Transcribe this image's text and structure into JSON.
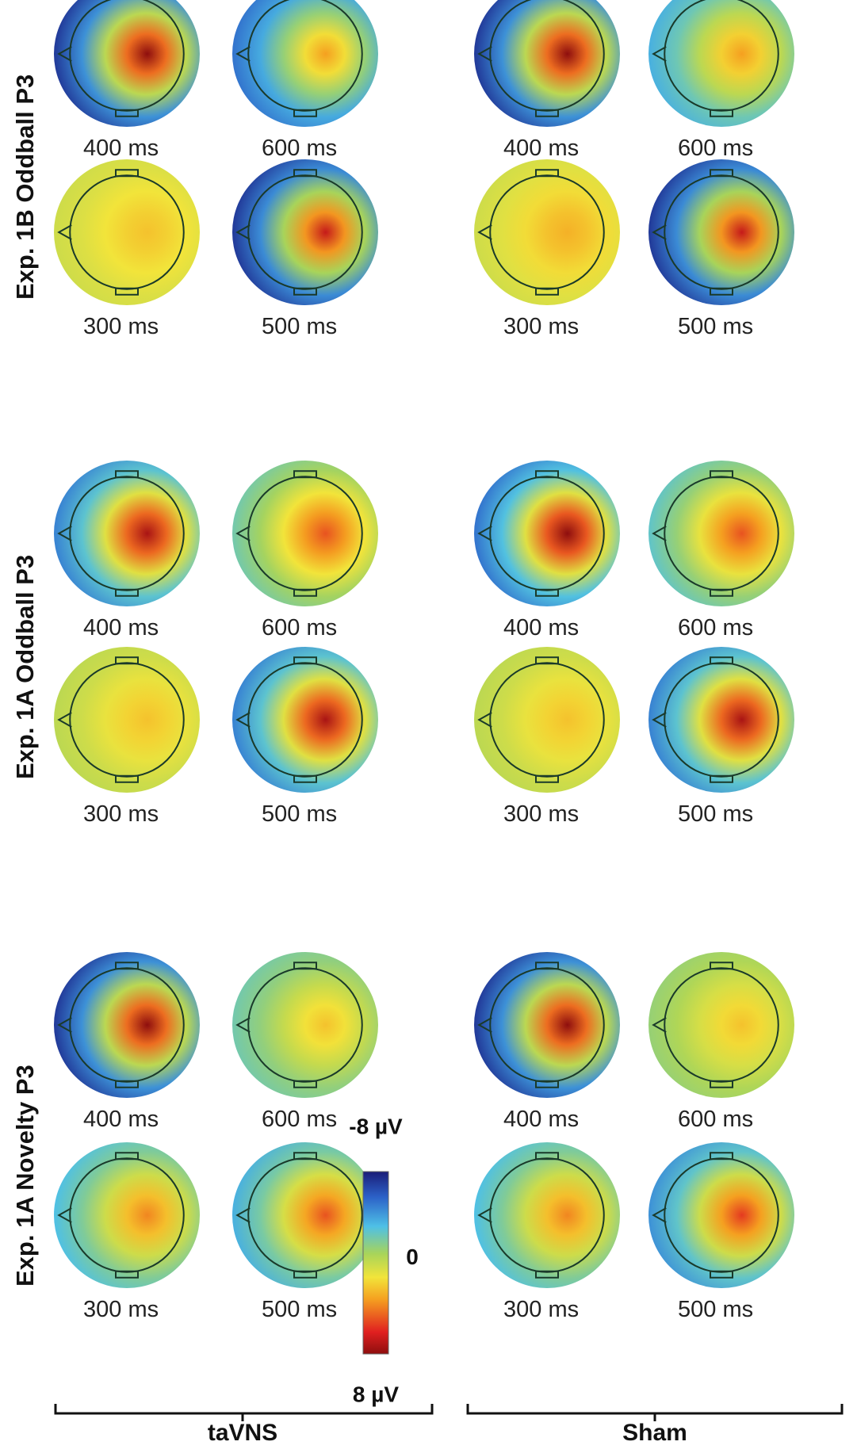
{
  "sections": [
    {
      "title": "Exp. 1A Novelty P3"
    },
    {
      "title": "Exp. 1A Oddball P3"
    },
    {
      "title": "Exp. 1B Oddball P3"
    }
  ],
  "time_labels": [
    "300 ms",
    "400 ms",
    "500 ms",
    "600 ms"
  ],
  "conditions": [
    {
      "label": "taVNS"
    },
    {
      "label": "Sham"
    }
  ],
  "colorbar": {
    "max_label": "8 µV",
    "zero_label": "0",
    "min_label": "-8 µV"
  },
  "colors": {
    "positive": "#c81a1a",
    "zero": "#9ccc5a",
    "negative": "#2a3c9c"
  },
  "maps": [
    {
      "condition": "taVNS",
      "section": 0,
      "time": "300 ms",
      "peak_uV": 4.5,
      "frontal_uV": -2.5
    },
    {
      "condition": "taVNS",
      "section": 0,
      "time": "400 ms",
      "peak_uV": 8.0,
      "frontal_uV": -7.0
    },
    {
      "condition": "taVNS",
      "section": 0,
      "time": "500 ms",
      "peak_uV": 5.5,
      "frontal_uV": -3.0
    },
    {
      "condition": "taVNS",
      "section": 0,
      "time": "600 ms",
      "peak_uV": 3.0,
      "frontal_uV": -1.5
    },
    {
      "condition": "taVNS",
      "section": 1,
      "time": "300 ms",
      "peak_uV": 3.0,
      "frontal_uV": 0.5
    },
    {
      "condition": "taVNS",
      "section": 1,
      "time": "400 ms",
      "peak_uV": 7.5,
      "frontal_uV": -4.5
    },
    {
      "condition": "taVNS",
      "section": 1,
      "time": "500 ms",
      "peak_uV": 7.5,
      "frontal_uV": -4.5
    },
    {
      "condition": "taVNS",
      "section": 1,
      "time": "600 ms",
      "peak_uV": 5.5,
      "frontal_uV": -1.5
    },
    {
      "condition": "taVNS",
      "section": 2,
      "time": "300 ms",
      "peak_uV": 3.0,
      "frontal_uV": 1.0
    },
    {
      "condition": "taVNS",
      "section": 2,
      "time": "400 ms",
      "peak_uV": 8.0,
      "frontal_uV": -7.0
    },
    {
      "condition": "taVNS",
      "section": 2,
      "time": "500 ms",
      "peak_uV": 7.0,
      "frontal_uV": -7.0
    },
    {
      "condition": "taVNS",
      "section": 2,
      "time": "600 ms",
      "peak_uV": 4.0,
      "frontal_uV": -5.0
    },
    {
      "condition": "Sham",
      "section": 0,
      "time": "300 ms",
      "peak_uV": 4.5,
      "frontal_uV": -2.5
    },
    {
      "condition": "Sham",
      "section": 0,
      "time": "400 ms",
      "peak_uV": 8.0,
      "frontal_uV": -7.0
    },
    {
      "condition": "Sham",
      "section": 0,
      "time": "500 ms",
      "peak_uV": 6.0,
      "frontal_uV": -4.0
    },
    {
      "condition": "Sham",
      "section": 0,
      "time": "600 ms",
      "peak_uV": 3.0,
      "frontal_uV": -0.5
    },
    {
      "condition": "Sham",
      "section": 1,
      "time": "300 ms",
      "peak_uV": 3.0,
      "frontal_uV": 0.5
    },
    {
      "condition": "Sham",
      "section": 1,
      "time": "400 ms",
      "peak_uV": 8.0,
      "frontal_uV": -5.0
    },
    {
      "condition": "Sham",
      "section": 1,
      "time": "500 ms",
      "peak_uV": 7.5,
      "frontal_uV": -4.5
    },
    {
      "condition": "Sham",
      "section": 1,
      "time": "600 ms",
      "peak_uV": 5.5,
      "frontal_uV": -2.0
    },
    {
      "condition": "Sham",
      "section": 2,
      "time": "300 ms",
      "peak_uV": 3.5,
      "frontal_uV": 1.0
    },
    {
      "condition": "Sham",
      "section": 2,
      "time": "400 ms",
      "peak_uV": 8.0,
      "frontal_uV": -7.0
    },
    {
      "condition": "Sham",
      "section": 2,
      "time": "500 ms",
      "peak_uV": 7.0,
      "frontal_uV": -7.0
    },
    {
      "condition": "Sham",
      "section": 2,
      "time": "600 ms",
      "peak_uV": 4.0,
      "frontal_uV": -3.0
    }
  ]
}
